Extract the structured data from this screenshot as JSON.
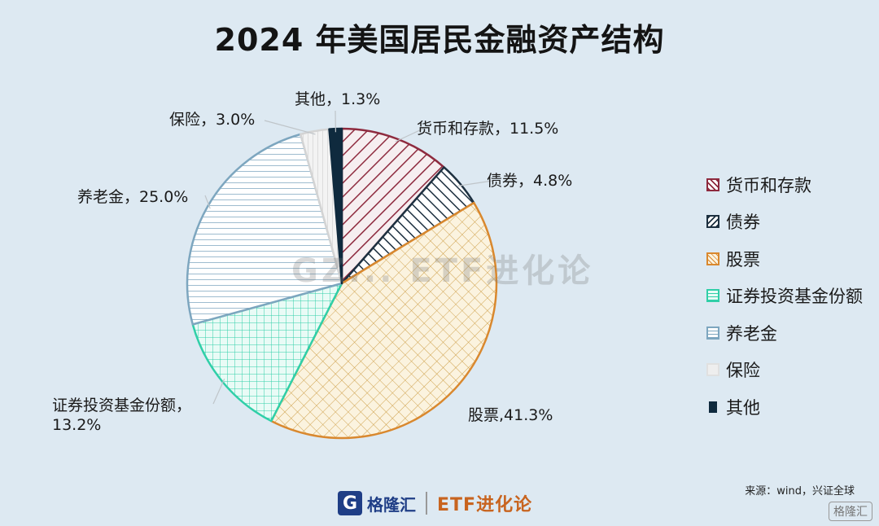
{
  "header": {
    "title": "2024 年美国居民金融资产结构"
  },
  "chart_data": {
    "type": "pie",
    "title": "2024 年美国居民金融资产结构",
    "slices": [
      {
        "name": "货币和存款",
        "value": 11.5,
        "label": "货币和存款，11.5%",
        "color": "#8e2a3e"
      },
      {
        "name": "债券",
        "value": 4.8,
        "label": "债券，4.8%",
        "color": "#1d3040"
      },
      {
        "name": "股票",
        "value": 41.3,
        "label": "股票,41.3%",
        "color": "#d9882e"
      },
      {
        "name": "证券投资基金份额",
        "value": 13.2,
        "label_lines": [
          "证券投资基金份额，",
          "13.2%"
        ],
        "color": "#30cfa8"
      },
      {
        "name": "养老金",
        "value": 25.0,
        "label": "养老金，25.0%",
        "color": "#7da6bf"
      },
      {
        "name": "保险",
        "value": 3.0,
        "label": "保险，3.0%",
        "color": "#d4d4d4"
      },
      {
        "name": "其他",
        "value": 1.3,
        "label": "其他，1.3%",
        "color": "#0f2a3e"
      }
    ],
    "legend_position": "right"
  },
  "legend": {
    "items": [
      "货币和存款",
      "债券",
      "股票",
      "证券投资基金份额",
      "养老金",
      "保险",
      "其他"
    ]
  },
  "source": "来源：wind，兴证全球",
  "footer": {
    "brand": "格隆汇",
    "sub_brand": "ETF进化论",
    "logo_letter": "G"
  },
  "watermark": "GZ... ETF进化论",
  "corner_badge": "格隆汇"
}
